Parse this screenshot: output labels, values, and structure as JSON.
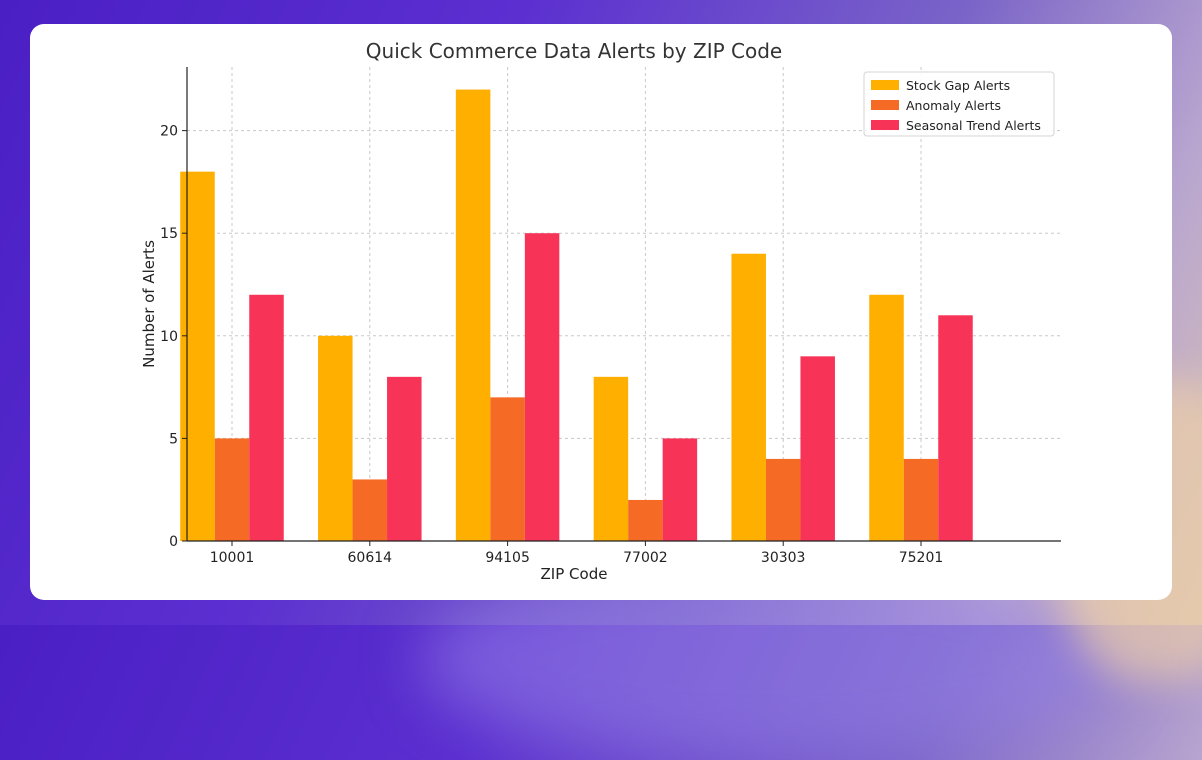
{
  "chart_data": {
    "type": "bar",
    "title": "Quick Commerce Data Alerts by ZIP Code",
    "xlabel": "ZIP Code",
    "ylabel": "Number of Alerts",
    "categories": [
      "10001",
      "60614",
      "94105",
      "77002",
      "30303",
      "75201"
    ],
    "series": [
      {
        "name": "Stock Gap Alerts",
        "color": "#ffaf00",
        "values": [
          18,
          10,
          22,
          8,
          14,
          12
        ]
      },
      {
        "name": "Anomaly Alerts",
        "color": "#f56b25",
        "values": [
          5,
          3,
          7,
          2,
          4,
          4
        ]
      },
      {
        "name": "Seasonal Trend Alerts",
        "color": "#f73457",
        "values": [
          12,
          8,
          15,
          5,
          9,
          11
        ]
      }
    ],
    "ylim": [
      0,
      23.1
    ],
    "yticks": [
      0,
      5,
      10,
      15,
      20
    ],
    "grid": true,
    "legend_position": "top-right"
  }
}
